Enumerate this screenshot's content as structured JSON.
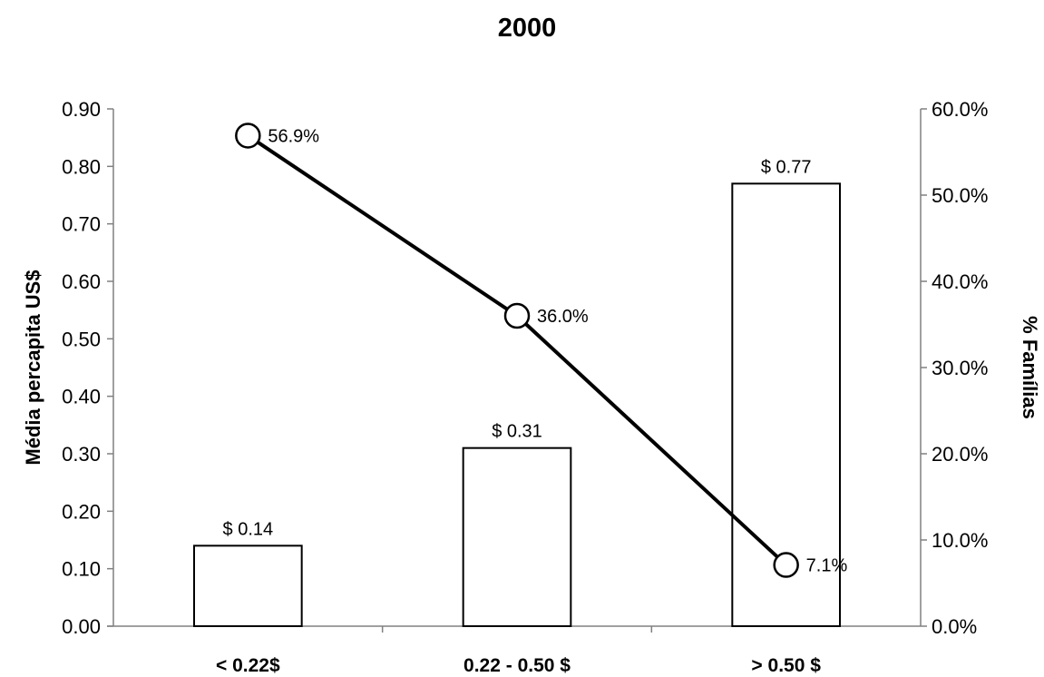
{
  "chart_data": {
    "type": "bar",
    "title": "2000",
    "categories": [
      "< 0.22$",
      "0.22 - 0.50 $",
      "> 0.50 $"
    ],
    "ylabel": "Média percapita US$",
    "y2label": "% Famílias",
    "ylim": [
      0,
      0.9
    ],
    "y2lim": [
      0,
      60
    ],
    "yticks": [
      "0.00",
      "0.10",
      "0.20",
      "0.30",
      "0.40",
      "0.50",
      "0.60",
      "0.70",
      "0.80",
      "0.90"
    ],
    "y2ticks": [
      "0.0%",
      "10.0%",
      "20.0%",
      "30.0%",
      "40.0%",
      "50.0%",
      "60.0%"
    ],
    "grid": false,
    "series": [
      {
        "type": "bar",
        "axis": "left",
        "values": [
          0.14,
          0.31,
          0.77
        ],
        "labels": [
          "$ 0.14",
          "$ 0.31",
          "$ 0.77"
        ]
      },
      {
        "type": "line",
        "axis": "right",
        "values": [
          56.9,
          36.0,
          7.1
        ],
        "labels": [
          "56.9%",
          "36.0%",
          "7.1%"
        ]
      }
    ]
  }
}
